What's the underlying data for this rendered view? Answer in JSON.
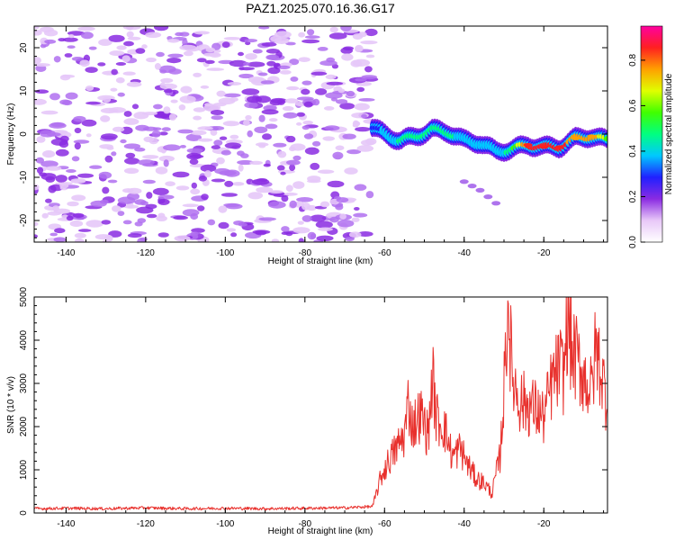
{
  "figure_title": "PAZ1.2025.070.16.36.G17",
  "chart_data": [
    {
      "type": "heatmap",
      "title": "PAZ1.2025.070.16.36.G17",
      "xlabel": "Height of straight line (km)",
      "ylabel": "Frequency (Hz)",
      "xlim": [
        -148,
        -4
      ],
      "ylim": [
        -25,
        25
      ],
      "xticks": [
        -140,
        -120,
        -100,
        -80,
        -60,
        -40,
        -20
      ],
      "yticks": [
        20,
        10,
        0,
        -10,
        -20
      ],
      "colorbar": {
        "label": "Normalized spectral amplitude",
        "range": [
          0,
          0.95
        ],
        "ticks": [
          "0.0",
          "0.2",
          "0.4",
          "0.6",
          "0.8"
        ],
        "colors": [
          "#ffffff",
          "#e8c8f8",
          "#8a2be2",
          "#2020ff",
          "#00c8ff",
          "#00ff80",
          "#40ff00",
          "#e0ff00",
          "#ffa000",
          "#ff2020",
          "#ff00a0"
        ]
      },
      "noise_region_x": [
        -148,
        -63
      ],
      "noise_amplitude_range": [
        0.02,
        0.12
      ],
      "signal_ridge": {
        "x": [
          -63,
          -60,
          -56,
          -52,
          -48,
          -44,
          -40,
          -36,
          -32,
          -28,
          -24,
          -20,
          -16,
          -12,
          -8,
          -4
        ],
        "y": [
          1.5,
          0,
          -1.5,
          -0.5,
          1,
          0.5,
          -1.5,
          -2,
          -4,
          -3.5,
          -2.5,
          -3,
          -3,
          -1,
          -0.5,
          -1.5
        ],
        "peak_amplitude": [
          0.3,
          0.35,
          0.45,
          0.5,
          0.5,
          0.45,
          0.4,
          0.35,
          0.35,
          0.5,
          0.85,
          0.9,
          0.85,
          0.75,
          0.8,
          0.6
        ]
      },
      "secondary_trace": {
        "x": [
          -40,
          -38,
          -36,
          -34,
          -32
        ],
        "y": [
          -11,
          -12,
          -13,
          -14.5,
          -16
        ],
        "peak_amplitude": 0.12
      }
    },
    {
      "type": "line",
      "title": "",
      "xlabel": "Height of straight line (km)",
      "ylabel": "SNR (10 * v/v)",
      "xlim": [
        -148,
        -4
      ],
      "ylim": [
        0,
        5000
      ],
      "xticks": [
        -140,
        -120,
        -100,
        -80,
        -60,
        -40,
        -20
      ],
      "yticks": [
        0,
        1000,
        2000,
        3000,
        4000,
        5000
      ],
      "series_color": "#e8302c",
      "series": [
        {
          "x": [
            -148,
            -140,
            -130,
            -120,
            -110,
            -100,
            -90,
            -80,
            -70,
            -63,
            -61,
            -59,
            -57,
            -55,
            -54,
            -53,
            -51,
            -49,
            -48,
            -47,
            -45,
            -43,
            -41,
            -39,
            -37,
            -35,
            -33,
            -32,
            -31,
            -30,
            -29,
            -28,
            -27,
            -26,
            -24,
            -22,
            -20,
            -18,
            -16,
            -15,
            -14,
            -13,
            -12,
            -10,
            -8,
            -7,
            -6,
            -5,
            -4
          ],
          "y": [
            100,
            110,
            100,
            120,
            100,
            110,
            100,
            110,
            120,
            150,
            800,
            1200,
            1500,
            1800,
            2600,
            2000,
            2300,
            1800,
            3200,
            2200,
            2000,
            1300,
            1500,
            1100,
            800,
            700,
            450,
            900,
            1300,
            2800,
            5000,
            3200,
            2900,
            2600,
            2500,
            2400,
            2200,
            3000,
            3400,
            3200,
            4600,
            3700,
            3600,
            3200,
            2800,
            3800,
            3500,
            3000,
            2500
          ]
        }
      ]
    }
  ]
}
